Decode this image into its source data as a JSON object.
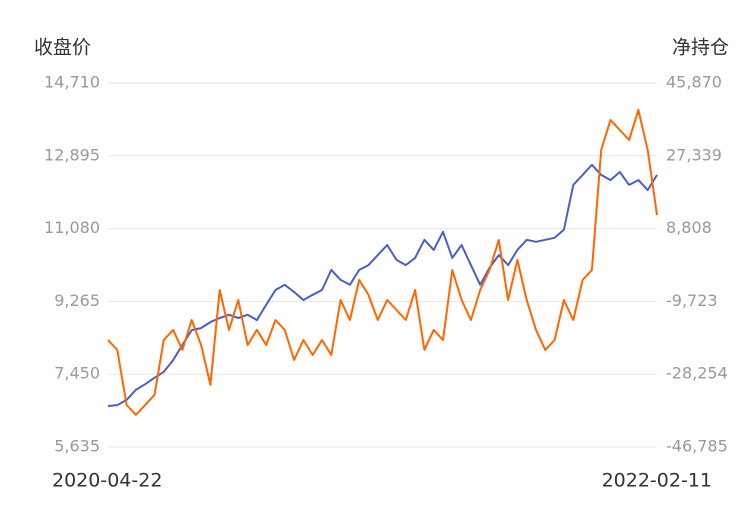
{
  "chart_data": {
    "type": "line",
    "y_label": "收盘价",
    "y2_label": "净持仓",
    "categories": [
      "2020-04-22",
      null,
      null,
      null,
      null,
      null,
      null,
      null,
      null,
      null,
      null,
      null,
      null,
      null,
      null,
      null,
      null,
      null,
      null,
      null,
      null,
      null,
      null,
      null,
      null,
      null,
      null,
      null,
      null,
      null,
      null,
      null,
      null,
      null,
      null,
      null,
      null,
      null,
      null,
      null,
      null,
      null,
      null,
      null,
      null,
      null,
      null,
      null,
      null,
      null,
      null,
      null,
      null,
      null,
      null,
      null,
      null,
      null,
      null,
      "2022-02-11"
    ],
    "series": [
      {
        "color": "#4a5fc1",
        "values": [
          6657,
          6680,
          6810,
          7060,
          7200,
          7360,
          7510,
          7800,
          8180,
          8550,
          8600,
          8750,
          8850,
          8930,
          8850,
          8930,
          8800,
          9180,
          9550,
          9680,
          9500,
          9300,
          9430,
          9550,
          10050,
          9800,
          9680,
          10050,
          10170,
          10420,
          10670,
          10300,
          10170,
          10350,
          10800,
          10550,
          11000,
          10350,
          10670,
          10170,
          9680,
          10100,
          10420,
          10170,
          10550,
          10800,
          10750,
          10800,
          10850,
          11050,
          12170,
          12420,
          12670,
          12420,
          12290,
          12490,
          12170,
          12290,
          12040,
          12420
        ]
      },
      {
        "color": "#ff6600",
        "axis": "y2",
        "values": [
          -19540,
          -22080,
          -36080,
          -38620,
          -36080,
          -33530,
          -19540,
          -16990,
          -22080,
          -14450,
          -20810,
          -30990,
          -6810,
          -16990,
          -9360,
          -20810,
          -16990,
          -20810,
          -14450,
          -16990,
          -24630,
          -19540,
          -23360,
          -19540,
          -23360,
          -9360,
          -14450,
          -4270,
          -8080,
          -14450,
          -9360,
          -11900,
          -14450,
          -6810,
          -22080,
          -16990,
          -19540,
          -1720,
          -9360,
          -14450,
          -6810,
          -1720,
          5910,
          -9360,
          820,
          -9360,
          -16990,
          -22080,
          -19540,
          -9360,
          -14450,
          -4270,
          -1720,
          28820,
          36460,
          33910,
          31370,
          39000,
          28820,
          12280
        ]
      }
    ],
    "ylim": [
      5635,
      14710
    ],
    "yticks": [
      {
        "value": 5635,
        "label": "5,635"
      },
      {
        "value": 7450,
        "label": "7,450"
      },
      {
        "value": 9265,
        "label": "9,265"
      },
      {
        "value": 11080,
        "label": "11,080"
      },
      {
        "value": 12895,
        "label": "12,895"
      },
      {
        "value": 14710,
        "label": "14,710"
      }
    ],
    "y2lim": [
      -46785,
      45870
    ],
    "y2ticks": [
      {
        "value": -46785,
        "label": "-46,785"
      },
      {
        "value": -28254,
        "label": "-28,254"
      },
      {
        "value": -9723,
        "label": "-9,723"
      },
      {
        "value": 8808,
        "label": "8,808"
      },
      {
        "value": 27339,
        "label": "27,339"
      },
      {
        "value": 45870,
        "label": "45,870"
      }
    ],
    "grid": true
  }
}
